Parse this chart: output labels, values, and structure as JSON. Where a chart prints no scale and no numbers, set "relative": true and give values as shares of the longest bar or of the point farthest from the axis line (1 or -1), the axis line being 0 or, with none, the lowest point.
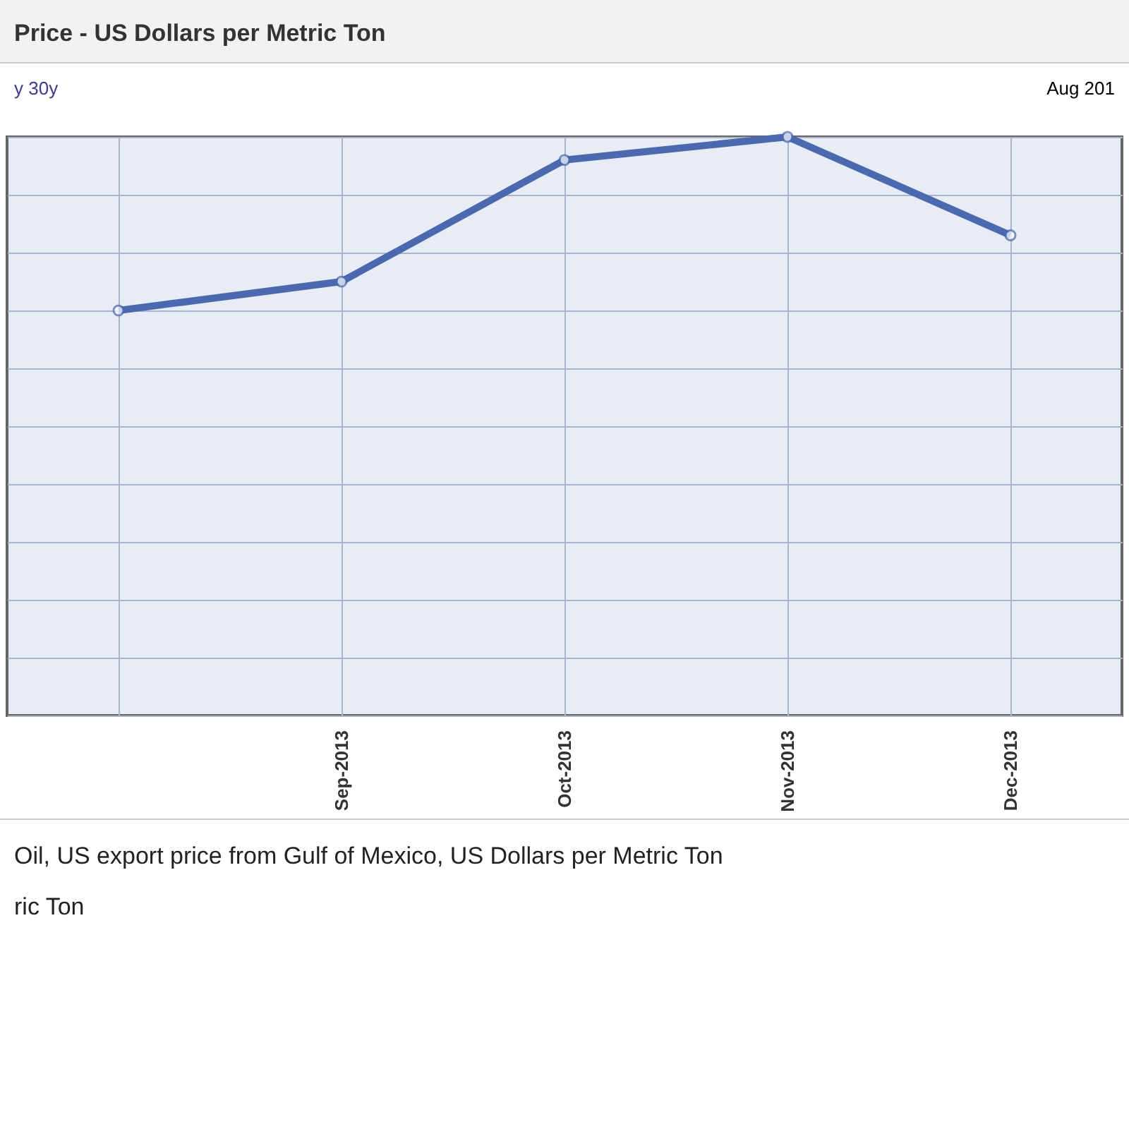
{
  "chart_data": {
    "type": "line",
    "title": "Price - US Dollars per Metric Ton",
    "annotations": [
      "y 30y",
      "Aug 201",
      "Oil, US export price from Gulf of Mexico, US Dollars per Metric Ton",
      "ric Ton"
    ],
    "categories": [
      null,
      "Sep-2013",
      "Oct-2013",
      "Nov-2013",
      "Dec-2013"
    ],
    "series": [
      {
        "color": "#4a69b0",
        "values": [
          0.7,
          0.75,
          0.96,
          1,
          0.83
        ]
      }
    ],
    "relative": true,
    "grid": true,
    "marker": "circle",
    "line_style": "solid"
  }
}
